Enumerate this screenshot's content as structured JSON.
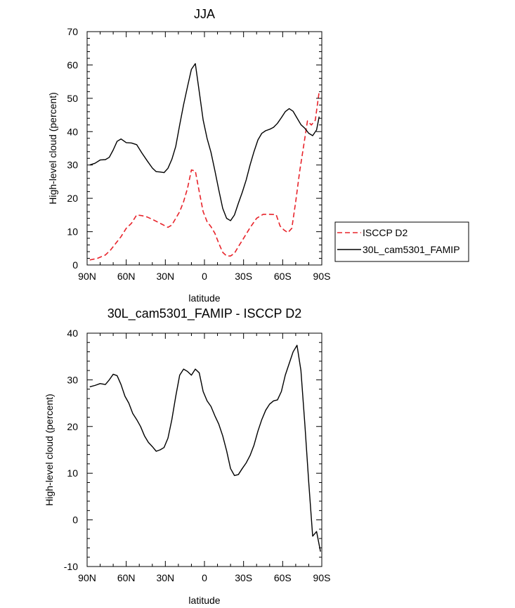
{
  "chart_data": [
    {
      "type": "line",
      "title": "JJA",
      "xlabel": "latitude",
      "ylabel": "High-level cloud (percent)",
      "xlim": [
        -90,
        90
      ],
      "ylim": [
        0,
        70
      ],
      "xticks": [
        {
          "value": -90,
          "label": "90N"
        },
        {
          "value": -60,
          "label": "60N"
        },
        {
          "value": -30,
          "label": "30N"
        },
        {
          "value": 0,
          "label": "0"
        },
        {
          "value": 30,
          "label": "30S"
        },
        {
          "value": 60,
          "label": "60S"
        },
        {
          "value": 90,
          "label": "90S"
        }
      ],
      "yticks": [
        0,
        10,
        20,
        30,
        40,
        50,
        60,
        70
      ],
      "legend": [
        {
          "label": "ISCCP D2",
          "color": "#e8232a",
          "dash": "dashed"
        },
        {
          "label": "30L_cam5301_FAMIP",
          "color": "#000000",
          "dash": "solid"
        }
      ],
      "series": [
        {
          "name": "30L_cam5301_FAMIP",
          "color": "#000000",
          "dash": "solid",
          "x": [
            -88,
            -84,
            -80,
            -76,
            -73,
            -70,
            -67,
            -64,
            -60,
            -56,
            -52,
            -48,
            -44,
            -40,
            -37,
            -34,
            -31,
            -28,
            -25,
            -22,
            -19,
            -16,
            -13,
            -10,
            -7,
            -4,
            -1,
            2,
            5,
            8,
            11,
            14,
            17,
            20,
            23,
            26,
            29,
            32,
            35,
            38,
            41,
            44,
            47,
            50,
            53,
            56,
            59,
            62,
            65,
            68,
            71,
            74,
            77,
            80,
            83,
            86,
            88
          ],
          "values": [
            30,
            30.5,
            31.5,
            31.6,
            32.3,
            34.5,
            37.1,
            37.8,
            36.7,
            36.6,
            36.1,
            33.6,
            31.3,
            29.1,
            28,
            27.9,
            27.7,
            29,
            31.7,
            35.6,
            42,
            48.1,
            53.5,
            58.7,
            60.4,
            52,
            43.5,
            38,
            33.8,
            28.3,
            22.5,
            17,
            14,
            13.3,
            15,
            18.5,
            21.8,
            25.5,
            30,
            34,
            37.5,
            39.5,
            40.3,
            40.7,
            41.3,
            42.5,
            44.2,
            46,
            46.9,
            46.1,
            44.1,
            42.1,
            41,
            39.5,
            38.8,
            40.5,
            44.5
          ]
        },
        {
          "name": "ISCCP D2",
          "color": "#e8232a",
          "dash": "dashed",
          "x": [
            -88,
            -82,
            -76,
            -72,
            -68,
            -64,
            -60,
            -56,
            -52,
            -48,
            -44,
            -40,
            -34,
            -28,
            -25,
            -22,
            -19,
            -16,
            -13,
            -10,
            -7,
            -4,
            -1,
            2,
            5,
            8,
            11,
            14,
            17,
            20,
            23,
            26,
            30,
            35,
            40,
            45,
            50,
            55,
            58,
            61,
            64,
            67,
            70,
            73,
            76,
            79,
            82,
            85,
            88
          ],
          "values": [
            1.5,
            2,
            3,
            4.5,
            6.5,
            8.5,
            11,
            12.5,
            15,
            14.8,
            14.4,
            13.7,
            12.5,
            11.3,
            12,
            14,
            16,
            19,
            23,
            28.5,
            28.2,
            22,
            16,
            13,
            11.5,
            9.5,
            6.5,
            3.8,
            2.7,
            2.7,
            3.5,
            5.5,
            8,
            11.2,
            14,
            15.2,
            15.2,
            15.1,
            11.7,
            10.5,
            9.7,
            11,
            19,
            28,
            35.5,
            43.2,
            42,
            43.4,
            52
          ]
        }
      ]
    },
    {
      "type": "line",
      "title": "30L_cam5301_FAMIP - ISCCP D2",
      "xlabel": "latitude",
      "ylabel": "High-level cloud (percent)",
      "xlim": [
        -90,
        90
      ],
      "ylim": [
        -10,
        40
      ],
      "xticks": [
        {
          "value": -90,
          "label": "90N"
        },
        {
          "value": -60,
          "label": "60N"
        },
        {
          "value": -30,
          "label": "30N"
        },
        {
          "value": 0,
          "label": "0"
        },
        {
          "value": 30,
          "label": "30S"
        },
        {
          "value": 60,
          "label": "60S"
        },
        {
          "value": 90,
          "label": "90S"
        }
      ],
      "yticks": [
        -10,
        0,
        10,
        20,
        30,
        40
      ],
      "series": [
        {
          "name": "30L_cam5301_FAMIP - ISCCP D2",
          "color": "#000000",
          "dash": "solid",
          "x": [
            -88,
            -84,
            -80,
            -76,
            -73,
            -70,
            -67,
            -64,
            -61,
            -58,
            -55,
            -52,
            -49,
            -46,
            -43,
            -40,
            -37,
            -34,
            -31,
            -28,
            -25,
            -22,
            -19,
            -16,
            -13,
            -10,
            -7,
            -4,
            -1,
            2,
            5,
            8,
            11,
            14,
            17,
            20,
            23,
            26,
            29,
            32,
            35,
            38,
            41,
            44,
            47,
            50,
            53,
            56,
            59,
            62,
            65,
            68,
            71,
            74,
            77,
            80,
            83,
            86,
            89
          ],
          "values": [
            28.5,
            28.8,
            29.2,
            29,
            30,
            31.2,
            30.9,
            29,
            26.5,
            25,
            22.8,
            21.5,
            20,
            18,
            16.6,
            15.7,
            14.7,
            15,
            15.5,
            17.5,
            21.5,
            26.5,
            31,
            32.3,
            31.8,
            31,
            32.3,
            31.5,
            27.5,
            25.5,
            24.3,
            22.3,
            20.5,
            18,
            14.8,
            11,
            9.5,
            9.7,
            11,
            12.2,
            13.8,
            16,
            19,
            21.5,
            23.5,
            24.8,
            25.5,
            25.7,
            27.5,
            31,
            33.5,
            36,
            37.4,
            32,
            20.5,
            8,
            -3.5,
            -2.5,
            -6.8
          ]
        }
      ]
    }
  ]
}
